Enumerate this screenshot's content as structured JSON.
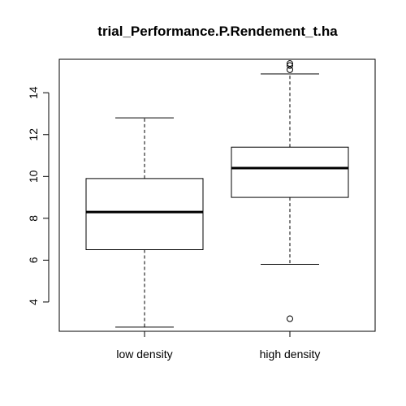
{
  "chart_data": {
    "type": "boxplot",
    "title": "trial_Performance.P.Rendement_t.ha",
    "xlabel": "",
    "ylabel": "",
    "ylim": [
      2.6,
      15.6
    ],
    "y_ticks": [
      4,
      6,
      8,
      10,
      12,
      14
    ],
    "grid": false,
    "categories": [
      "low density",
      "high density"
    ],
    "boxes": [
      {
        "min": 2.8,
        "q1": 6.5,
        "median": 8.3,
        "q3": 9.9,
        "max": 12.8,
        "outliers": []
      },
      {
        "min": 5.8,
        "q1": 9.0,
        "median": 10.4,
        "q3": 11.4,
        "max": 14.9,
        "outliers": [
          3.2,
          15.1,
          15.3,
          15.4
        ]
      }
    ]
  }
}
